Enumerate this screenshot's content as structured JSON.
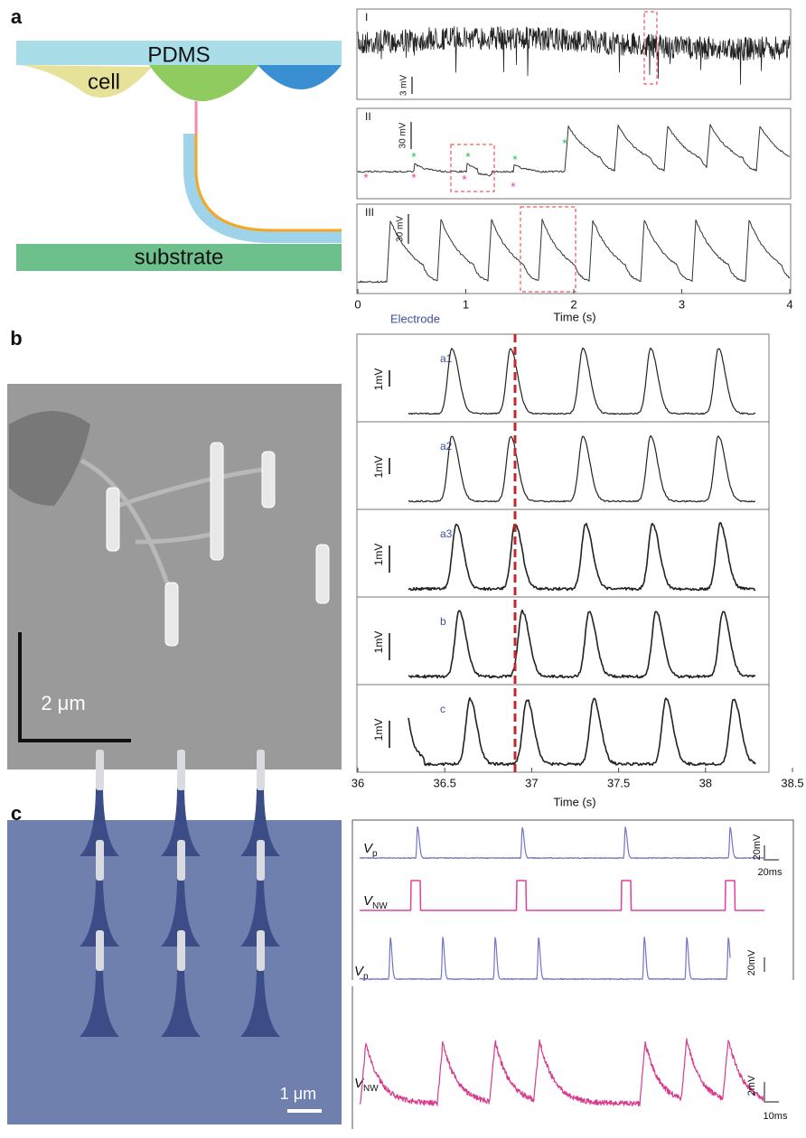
{
  "panels": [
    {
      "label": "a",
      "diagram": {
        "top": "PDMS",
        "left": "cell",
        "bottom": "substrate"
      },
      "traces": [
        {
          "label": "I",
          "scale": "3 mV"
        },
        {
          "label": "II",
          "scale": "30 mV"
        },
        {
          "label": "III",
          "scale": "30 mV"
        }
      ],
      "xlabel": "Time (s)",
      "xlim": [
        0,
        4
      ],
      "xticks": [
        0,
        1,
        2,
        3,
        4
      ]
    },
    {
      "label": "b",
      "image_scale": "2 μm",
      "heading": "Electrode",
      "traces": [
        {
          "label": "a1",
          "scale": "1mV"
        },
        {
          "label": "a2",
          "scale": "1mV"
        },
        {
          "label": "a3",
          "scale": "1mV"
        },
        {
          "label": "b",
          "scale": "1mV"
        },
        {
          "label": "c",
          "scale": "1mV"
        }
      ],
      "xlabel": "Time (s)",
      "xlim": [
        36,
        38.5
      ],
      "xticks": [
        36,
        36.5,
        37,
        37.5,
        38,
        38.5
      ]
    },
    {
      "label": "c",
      "image_scale": "1 μm",
      "traces": [
        {
          "symbol": "V",
          "sub": "p"
        },
        {
          "symbol": "V",
          "sub": "NW"
        },
        {
          "symbol": "V",
          "sub": "p"
        },
        {
          "symbol": "V",
          "sub": "NW"
        }
      ],
      "scales": [
        "20mV",
        "20ms",
        "20mV",
        "2mV",
        "10ms"
      ]
    }
  ]
}
